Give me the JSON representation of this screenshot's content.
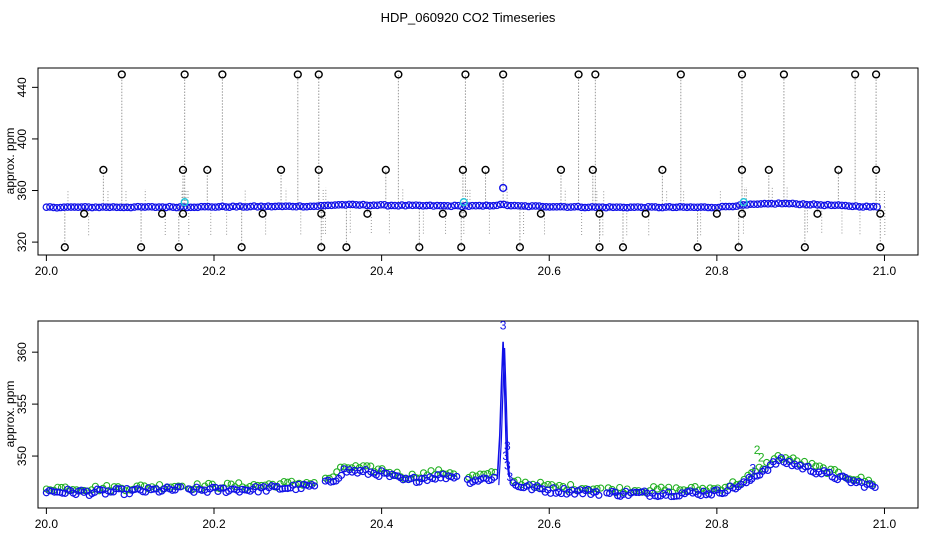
{
  "page": {
    "title": "HDP_060920  CO2 Timeseries"
  },
  "chart_data": [
    {
      "type": "scatter",
      "panel": "top",
      "ylabel": "approx. ppm",
      "xlabel": "",
      "xlim": [
        19.99,
        21.04
      ],
      "ylim": [
        310,
        455
      ],
      "x_ticks": [
        20.0,
        20.2,
        20.4,
        20.6,
        20.8,
        21.0
      ],
      "x_tick_labels": [
        "20.0",
        "20.2",
        "20.4",
        "20.6",
        "20.8",
        "21.0"
      ],
      "y_ticks": [
        320,
        360,
        400,
        440
      ],
      "y_tick_labels": [
        "320",
        "360",
        "400",
        "440"
      ],
      "grid": false,
      "colors": {
        "main": "#1010e8",
        "flag": "#000000",
        "accent": "#22c5d8",
        "spike_line": "#9a9a9a"
      },
      "baseline": [
        [
          20.0,
          347.0
        ],
        [
          20.16,
          347.2
        ],
        [
          20.32,
          347.8
        ],
        [
          20.35,
          349.0
        ],
        [
          20.45,
          348.2
        ],
        [
          20.52,
          348.0
        ],
        [
          20.545,
          349.0
        ],
        [
          20.56,
          348.0
        ],
        [
          20.66,
          347.0
        ],
        [
          20.8,
          347.0
        ],
        [
          20.84,
          349.0
        ],
        [
          20.875,
          350.0
        ],
        [
          20.9,
          349.5
        ],
        [
          20.99,
          347.2
        ]
      ],
      "series": [
        {
          "name": "",
          "style": "flagged-high",
          "x": [
            20.09,
            20.165,
            20.21,
            20.3,
            20.325,
            20.42,
            20.5,
            20.545,
            20.635,
            20.655,
            20.757,
            20.83,
            20.88,
            20.965,
            20.99
          ],
          "values": [
            450,
            450,
            450,
            450,
            450,
            450,
            450,
            450,
            450,
            450,
            450,
            450,
            450,
            450,
            450
          ]
        },
        {
          "name": "",
          "style": "flagged-mid",
          "x": [
            20.068,
            20.163,
            20.192,
            20.28,
            20.325,
            20.405,
            20.497,
            20.524,
            20.614,
            20.652,
            20.735,
            20.83,
            20.862,
            20.945,
            20.99
          ],
          "values": [
            376,
            376,
            376,
            376,
            376,
            376,
            376,
            376,
            376,
            376,
            376,
            376,
            376,
            376,
            376
          ]
        },
        {
          "name": "",
          "style": "flagged-low",
          "x": [
            20.022,
            20.113,
            20.158,
            20.233,
            20.328,
            20.358,
            20.445,
            20.495,
            20.565,
            20.66,
            20.688,
            20.777,
            20.826,
            20.905,
            20.995
          ],
          "values": [
            316,
            316,
            316,
            316,
            316,
            316,
            316,
            316,
            316,
            316,
            316,
            316,
            316,
            316,
            316
          ]
        },
        {
          "name": "",
          "style": "flagged-mid2",
          "x": [
            20.045,
            20.138,
            20.163,
            20.258,
            20.328,
            20.383,
            20.473,
            20.497,
            20.59,
            20.66,
            20.715,
            20.8,
            20.83,
            20.92,
            20.995
          ],
          "values": [
            342,
            342,
            342,
            342,
            342,
            342,
            342,
            342,
            342,
            342,
            342,
            342,
            342,
            342,
            342
          ]
        },
        {
          "name": "",
          "style": "accent",
          "x": [
            20.165,
            20.498,
            20.545,
            20.832
          ],
          "values": [
            351,
            351,
            362,
            351
          ]
        }
      ]
    },
    {
      "type": "scatter",
      "panel": "bottom",
      "ylabel": "approx. ppm",
      "xlabel": "",
      "xlim": [
        19.99,
        21.04
      ],
      "ylim": [
        345.0,
        363.0
      ],
      "x_ticks": [
        20.0,
        20.2,
        20.4,
        20.6,
        20.8,
        21.0
      ],
      "x_tick_labels": [
        "20.0",
        "20.2",
        "20.4",
        "20.6",
        "20.8",
        "21.0"
      ],
      "y_ticks": [
        350,
        355,
        360
      ],
      "y_tick_labels": [
        "350",
        "355",
        "360"
      ],
      "grid": false,
      "colors": {
        "main": "#1010e8",
        "alt": "#22b022"
      },
      "gaps": [
        [
          20.163,
          20.167
        ],
        [
          20.322,
          20.33
        ],
        [
          20.49,
          20.5
        ],
        [
          20.662,
          20.668
        ]
      ],
      "baseline": [
        [
          20.0,
          346.6
        ],
        [
          20.05,
          346.5
        ],
        [
          20.1,
          346.6
        ],
        [
          20.16,
          346.8
        ],
        [
          20.167,
          346.7
        ],
        [
          20.25,
          346.8
        ],
        [
          20.32,
          347.1
        ],
        [
          20.33,
          347.2
        ],
        [
          20.345,
          347.8
        ],
        [
          20.355,
          348.6
        ],
        [
          20.4,
          348.3
        ],
        [
          20.43,
          347.6
        ],
        [
          20.46,
          348.0
        ],
        [
          20.49,
          348.1
        ],
        [
          20.5,
          347.6
        ],
        [
          20.535,
          347.9
        ],
        [
          20.545,
          348.0
        ],
        [
          20.56,
          347.2
        ],
        [
          20.6,
          346.7
        ],
        [
          20.662,
          346.5
        ],
        [
          20.668,
          346.4
        ],
        [
          20.75,
          346.4
        ],
        [
          20.8,
          346.5
        ],
        [
          20.83,
          347.2
        ],
        [
          20.855,
          348.6
        ],
        [
          20.875,
          349.6
        ],
        [
          20.9,
          349.0
        ],
        [
          20.95,
          347.8
        ],
        [
          20.99,
          347.0
        ]
      ],
      "spike": {
        "x": [
          20.538,
          20.541,
          20.543,
          20.545,
          20.547,
          20.549,
          20.552
        ],
        "values": [
          347.8,
          352.0,
          357.0,
          361.0,
          356.0,
          350.0,
          348.0
        ],
        "label": "3"
      },
      "point_labels": [
        {
          "x": 20.545,
          "y": 362.2,
          "text": "3",
          "color": "#1010e8"
        },
        {
          "x": 20.55,
          "y": 350.6,
          "text": "3",
          "color": "#1010e8"
        },
        {
          "x": 20.548,
          "y": 349.6,
          "text": "3",
          "color": "#1010e8"
        },
        {
          "x": 20.55,
          "y": 348.7,
          "text": "3",
          "color": "#1010e8"
        },
        {
          "x": 20.553,
          "y": 347.6,
          "text": "3",
          "color": "#1010e8"
        },
        {
          "x": 20.848,
          "y": 350.2,
          "text": "2",
          "color": "#22b022"
        },
        {
          "x": 20.853,
          "y": 349.5,
          "text": "2",
          "color": "#22b022"
        },
        {
          "x": 20.843,
          "y": 348.4,
          "text": "3",
          "color": "#1010e8"
        },
        {
          "x": 20.84,
          "y": 347.3,
          "text": "3",
          "color": "#1010e8"
        }
      ]
    }
  ]
}
